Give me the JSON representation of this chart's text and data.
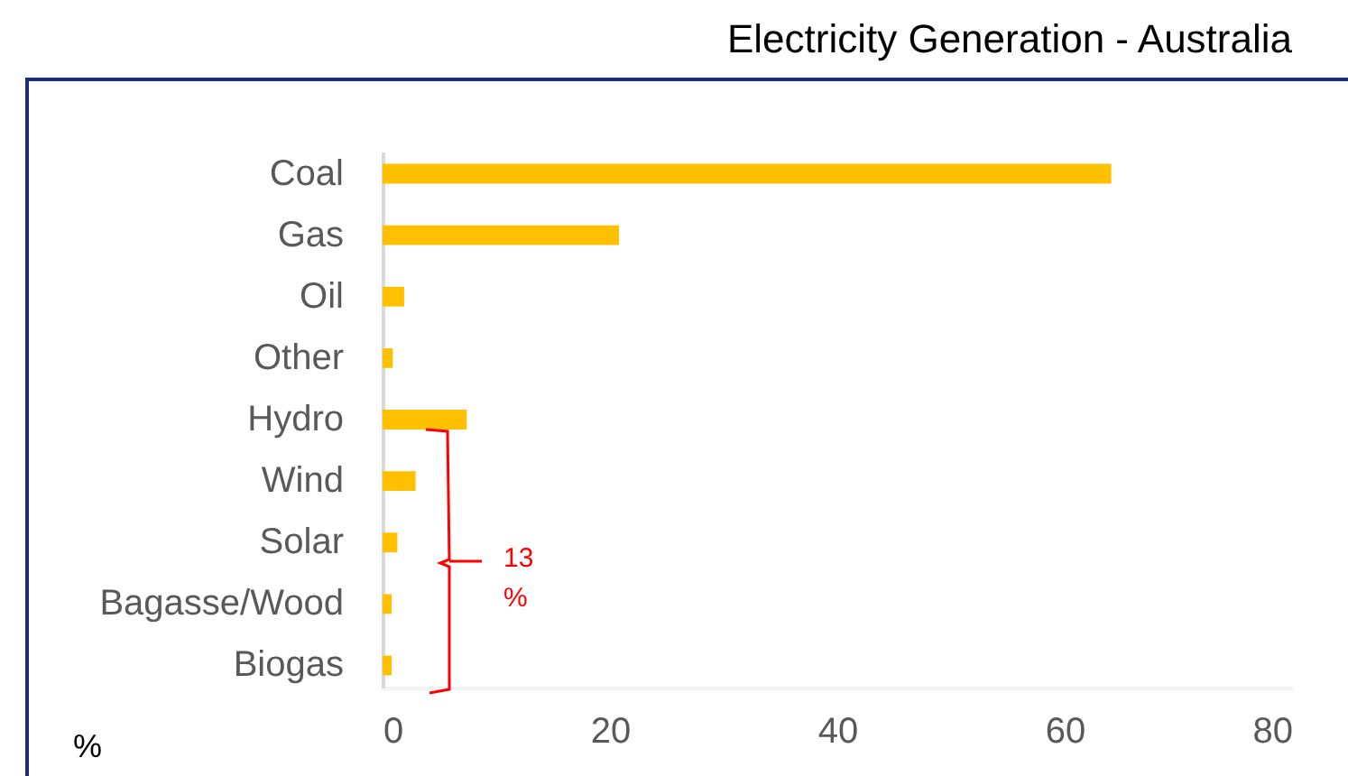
{
  "chart_data": {
    "type": "bar",
    "orientation": "horizontal",
    "title": "Electricity Generation - Australia",
    "xlabel": "%",
    "categories": [
      "Coal",
      "Gas",
      "Oil",
      "Other",
      "Hydro",
      "Wind",
      "Solar",
      "Bagasse/Wood",
      "Biogas"
    ],
    "values": [
      64.1,
      20.8,
      1.9,
      0.9,
      7.4,
      2.9,
      1.3,
      0.8,
      0.8
    ],
    "color": "#ffc000",
    "xlim": [
      0,
      80
    ],
    "xticks": [
      0,
      20,
      40,
      60,
      80
    ],
    "grid": false,
    "annotations": [
      "13 %"
    ]
  }
}
